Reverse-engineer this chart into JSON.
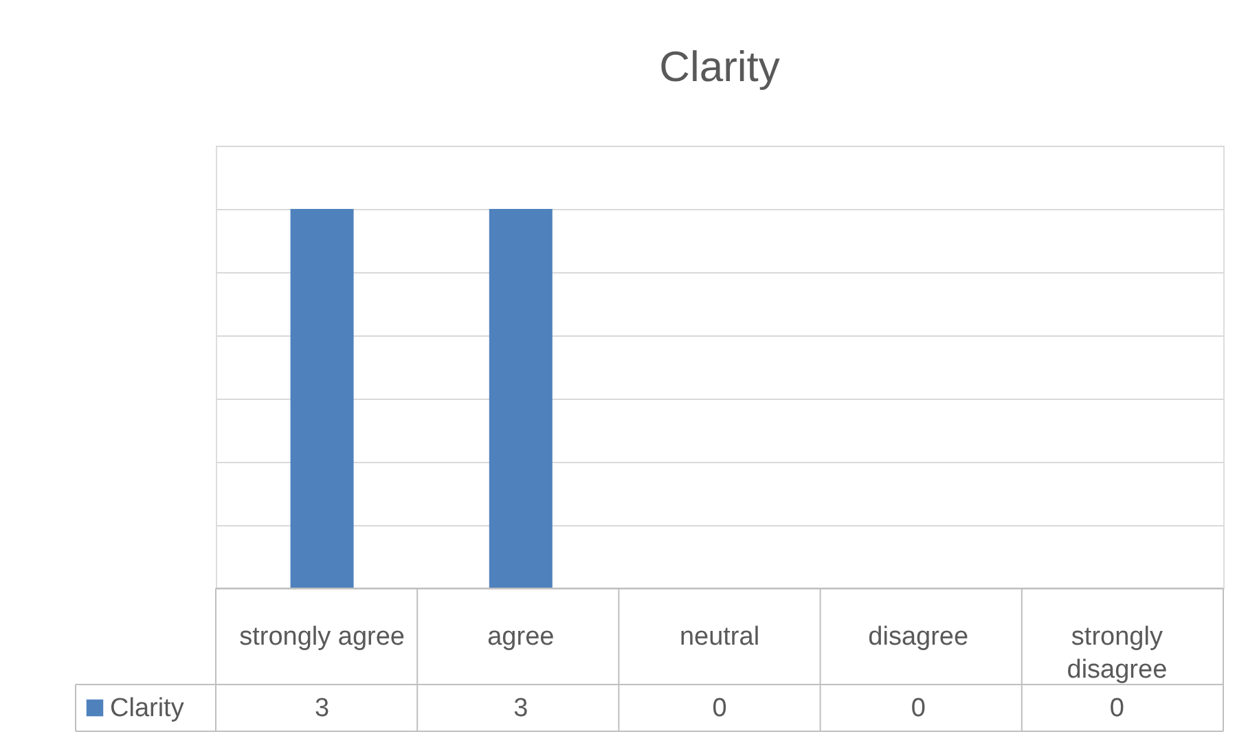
{
  "chart_data": {
    "type": "bar",
    "title": "Clarity",
    "categories": [
      "strongly agree",
      "agree",
      "neutral",
      "disagree",
      "strongly disagree"
    ],
    "series": [
      {
        "name": "Clarity",
        "color": "#4f81bd",
        "values": [
          3,
          3,
          0,
          0,
          0
        ]
      }
    ],
    "ylim": [
      0,
      3.5
    ],
    "yticks": [
      {
        "value": 0,
        "label": null
      },
      {
        "value": 0.5,
        "label": null
      },
      {
        "value": 1,
        "label": null
      },
      {
        "value": 1.5,
        "label": null
      },
      {
        "value": 2,
        "label": null
      },
      {
        "value": 2.5,
        "label": null
      },
      {
        "value": 3,
        "label": null
      },
      {
        "value": 3.5,
        "label": null
      }
    ],
    "grid": "y",
    "data_labels": true,
    "legend": "bottom left"
  }
}
